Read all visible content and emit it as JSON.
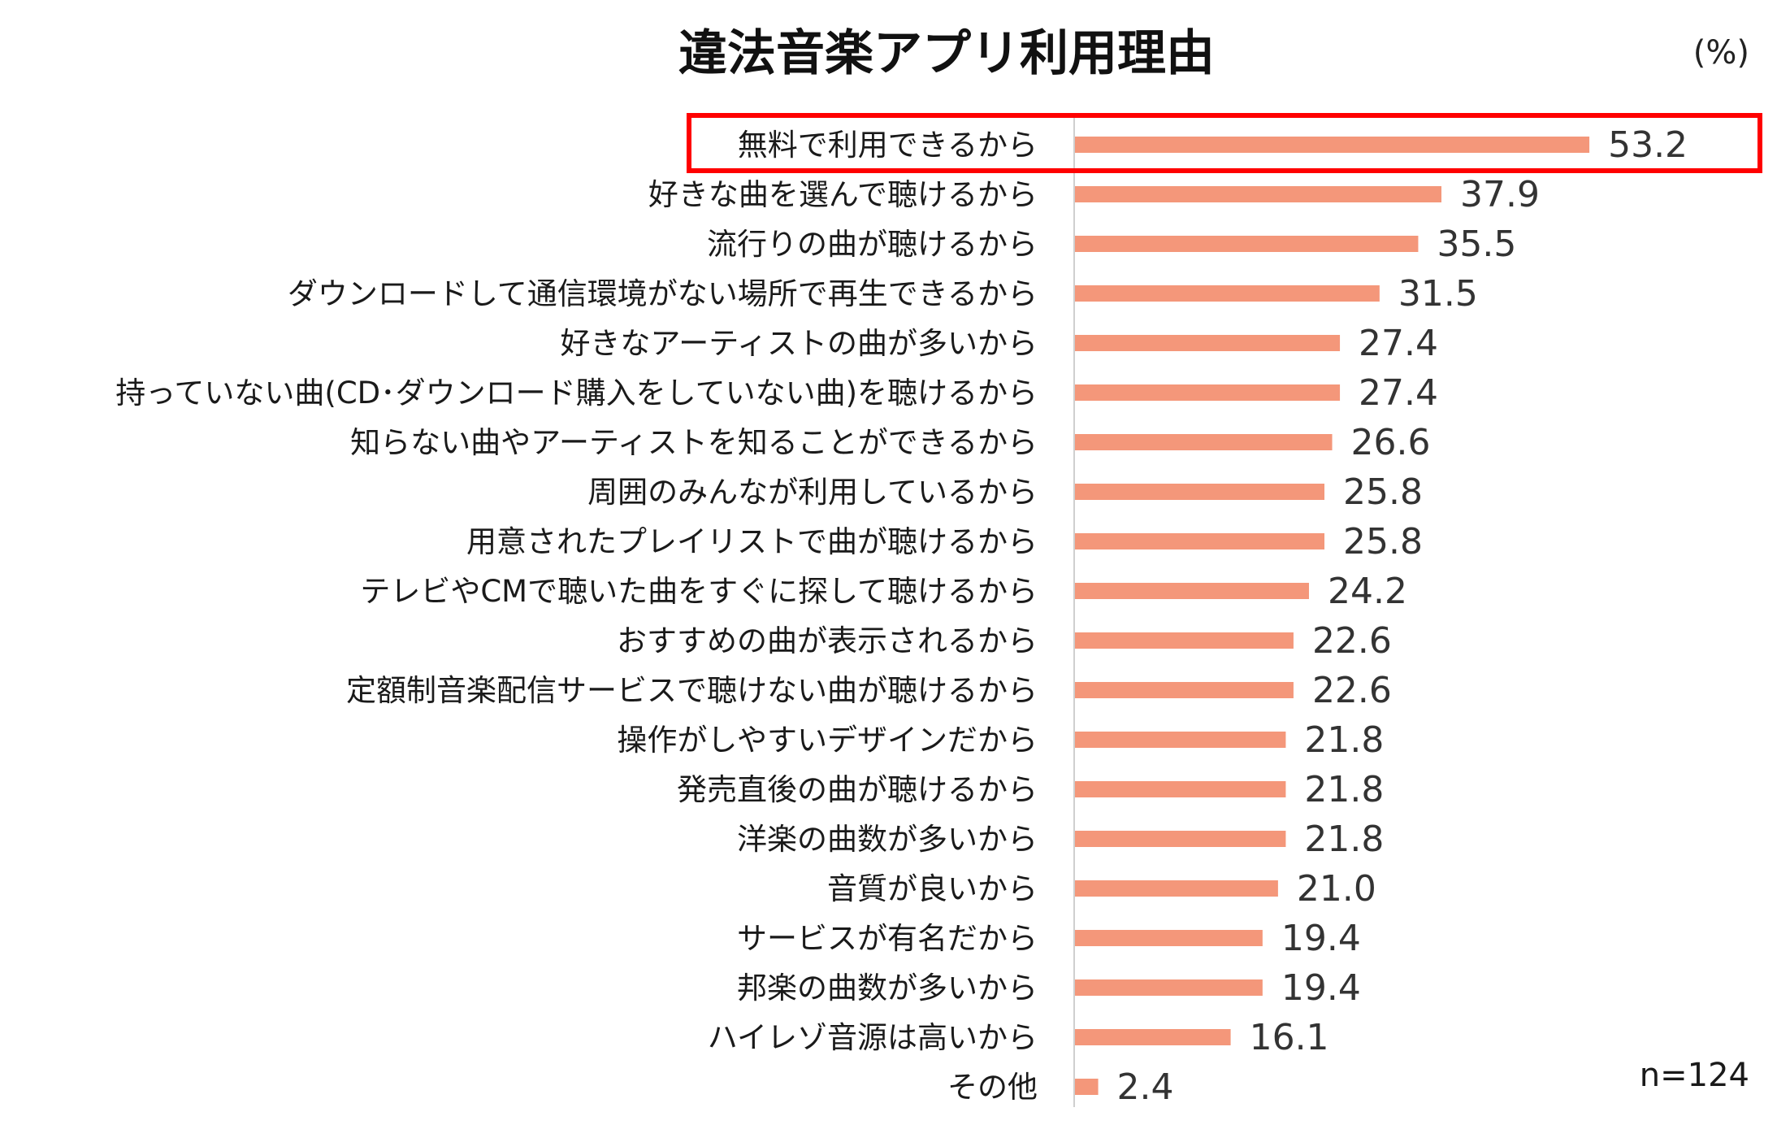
{
  "chart_data": {
    "type": "bar",
    "orientation": "horizontal",
    "title": "違法音楽アプリ利用理由",
    "unit": "(%)",
    "sample_size": "n=124",
    "categories": [
      "無料で利用できるから",
      "好きな曲を選んで聴けるから",
      "流行りの曲が聴けるから",
      "ダウンロードして通信環境がない場所で再生できるから",
      "好きなアーティストの曲が多いから",
      "持っていない曲(CD･ダウンロード購入をしていない曲)を聴けるから",
      "知らない曲やアーティストを知ることができるから",
      "周囲のみんなが利用しているから",
      "用意されたプレイリストで曲が聴けるから",
      "テレビやCMで聴いた曲をすぐに探して聴けるから",
      "おすすめの曲が表示されるから",
      "定額制音楽配信サービスで聴けない曲が聴けるから",
      "操作がしやすいデザインだから",
      "発売直後の曲が聴けるから",
      "洋楽の曲数が多いから",
      "音質が良いから",
      "サービスが有名だから",
      "邦楽の曲数が多いから",
      "ハイレゾ音源は高いから",
      "その他"
    ],
    "values": [
      53.2,
      37.9,
      35.5,
      31.5,
      27.4,
      27.4,
      26.6,
      25.8,
      25.8,
      24.2,
      22.6,
      22.6,
      21.8,
      21.8,
      21.8,
      21.0,
      19.4,
      19.4,
      16.1,
      2.4
    ],
    "value_labels": [
      "53.2",
      "37.9",
      "35.5",
      "31.5",
      "27.4",
      "27.4",
      "26.6",
      "25.8",
      "25.8",
      "24.2",
      "22.6",
      "22.6",
      "21.8",
      "21.8",
      "21.8",
      "21.0",
      "19.4",
      "19.4",
      "16.1",
      "2.4"
    ],
    "highlighted_category": "無料で利用できるから",
    "bar_color": "#f4977a",
    "highlight_color": "#ff0000",
    "axis_color": "#cfcfcf",
    "xlim": [
      0,
      54
    ],
    "grid": false,
    "legend": "none"
  }
}
